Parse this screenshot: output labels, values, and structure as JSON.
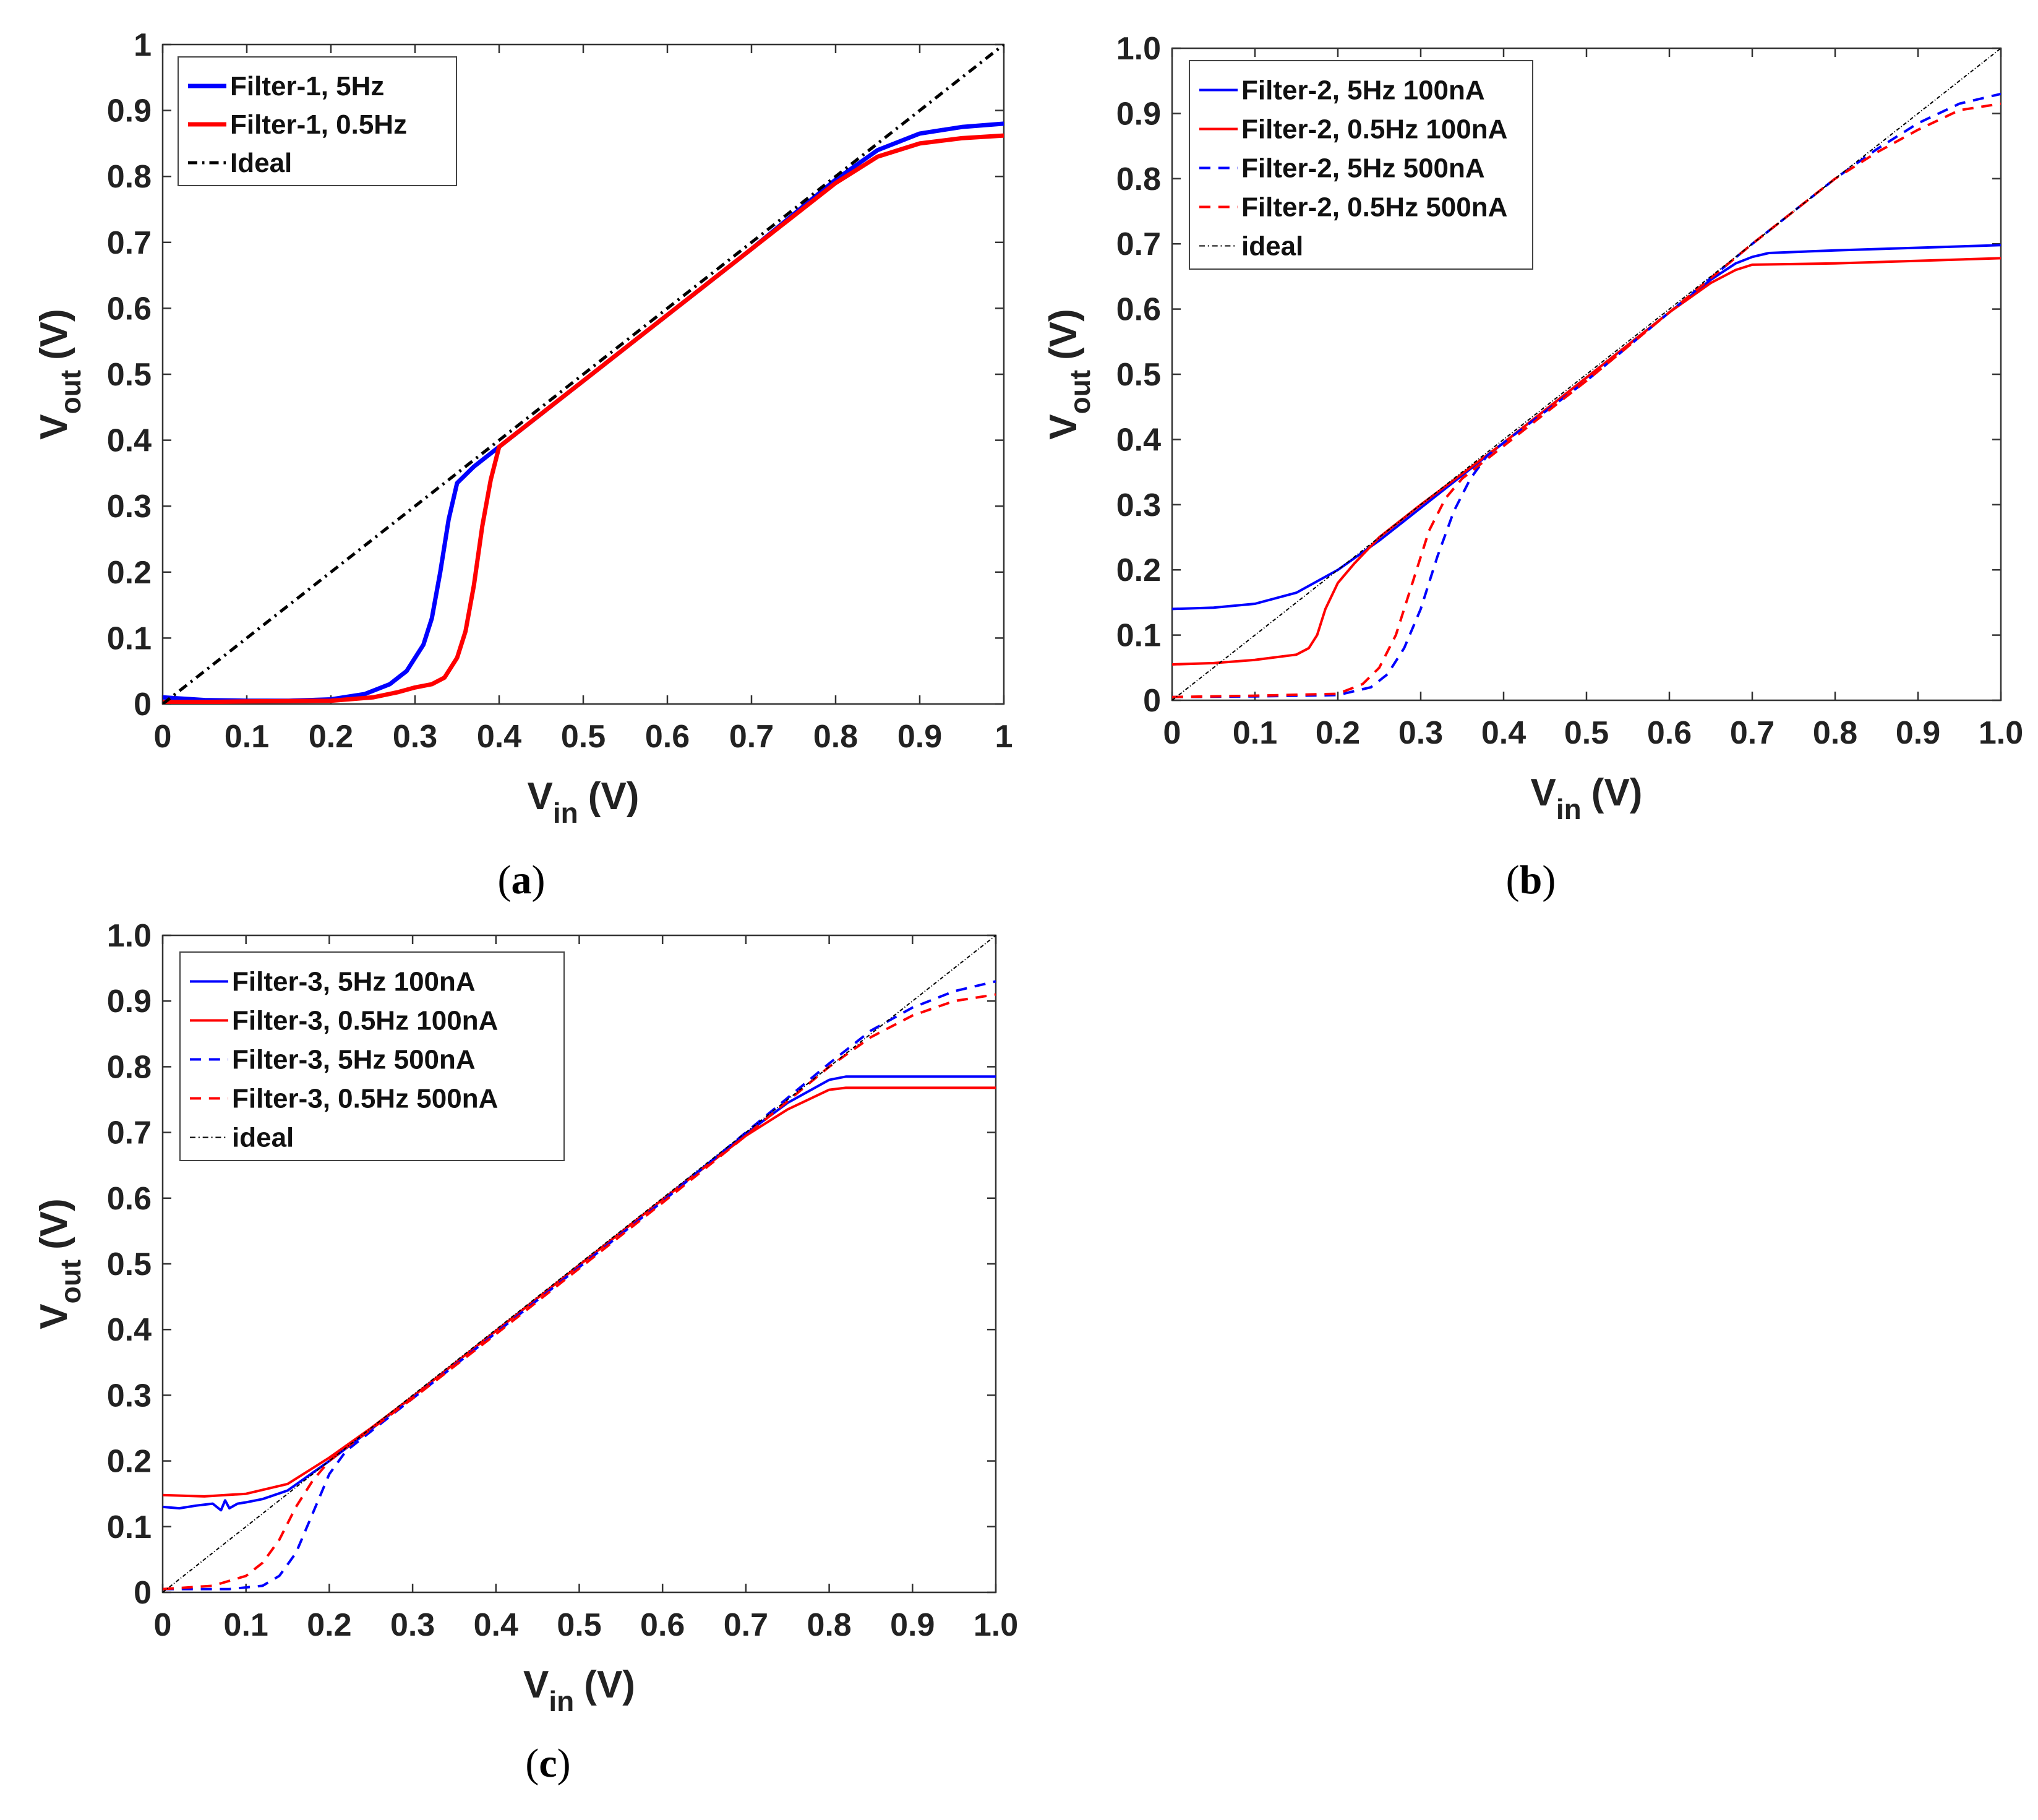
{
  "chart_data": [
    {
      "type": "line",
      "panel": "a",
      "caption_open": "(",
      "caption_letter": "a",
      "caption_close": ")",
      "xlabel_main": "V",
      "xlabel_sub": "in",
      "xlabel_unit": "(V)",
      "ylabel_main": "V",
      "ylabel_sub": "out",
      "ylabel_unit": "(V)",
      "xlim": [
        0,
        1
      ],
      "ylim": [
        0,
        1
      ],
      "xticks": [
        "0",
        "0.1",
        "0.2",
        "0.3",
        "0.4",
        "0.5",
        "0.6",
        "0.7",
        "0.8",
        "0.9",
        "1"
      ],
      "yticks": [
        "0",
        "0.1",
        "0.2",
        "0.3",
        "0.4",
        "0.5",
        "0.6",
        "0.7",
        "0.8",
        "0.9",
        "1"
      ],
      "legend_position": "top-left",
      "series": [
        {
          "name": "Filter-1, 5Hz",
          "color": "#0000ff",
          "dash": "solid",
          "width": 7,
          "x": [
            0,
            0.05,
            0.1,
            0.15,
            0.2,
            0.24,
            0.27,
            0.29,
            0.31,
            0.32,
            0.33,
            0.34,
            0.35,
            0.37,
            0.4,
            0.5,
            0.6,
            0.7,
            0.8,
            0.85,
            0.9,
            0.95,
            1.0
          ],
          "y": [
            0.01,
            0.006,
            0.005,
            0.005,
            0.007,
            0.015,
            0.03,
            0.05,
            0.09,
            0.13,
            0.2,
            0.28,
            0.335,
            0.36,
            0.39,
            0.49,
            0.59,
            0.69,
            0.795,
            0.84,
            0.865,
            0.875,
            0.88
          ]
        },
        {
          "name": "Filter-1, 0.5Hz",
          "color": "#ff0000",
          "dash": "solid",
          "width": 7,
          "x": [
            0,
            0.05,
            0.1,
            0.2,
            0.25,
            0.28,
            0.3,
            0.32,
            0.335,
            0.35,
            0.36,
            0.37,
            0.38,
            0.39,
            0.4,
            0.42,
            0.5,
            0.6,
            0.7,
            0.8,
            0.85,
            0.9,
            0.95,
            1.0
          ],
          "y": [
            0.003,
            0.003,
            0.004,
            0.005,
            0.01,
            0.018,
            0.025,
            0.03,
            0.04,
            0.07,
            0.11,
            0.18,
            0.27,
            0.34,
            0.39,
            0.41,
            0.49,
            0.59,
            0.69,
            0.79,
            0.83,
            0.85,
            0.858,
            0.862
          ]
        },
        {
          "name": "Ideal",
          "color": "#000000",
          "dash": "dashdot",
          "width": 5,
          "x": [
            0,
            1.0
          ],
          "y": [
            0,
            1.0
          ]
        }
      ]
    },
    {
      "type": "line",
      "panel": "b",
      "caption_open": "(",
      "caption_letter": "b",
      "caption_close": ")",
      "xlabel_main": "V",
      "xlabel_sub": "in",
      "xlabel_unit": "(V)",
      "ylabel_main": "V",
      "ylabel_sub": "out",
      "ylabel_unit": "(V)",
      "xlim": [
        0,
        1
      ],
      "ylim": [
        0,
        1
      ],
      "xticks": [
        "0",
        "0.1",
        "0.2",
        "0.3",
        "0.4",
        "0.5",
        "0.6",
        "0.7",
        "0.8",
        "0.9",
        "1.0"
      ],
      "yticks": [
        "0",
        "0.1",
        "0.2",
        "0.3",
        "0.4",
        "0.5",
        "0.6",
        "0.7",
        "0.8",
        "0.9",
        "1.0"
      ],
      "legend_position": "top-left",
      "series": [
        {
          "name": "Filter-2, 5Hz 100nA",
          "color": "#0000ff",
          "dash": "solid",
          "width": 4,
          "x": [
            0,
            0.05,
            0.1,
            0.15,
            0.2,
            0.25,
            0.3,
            0.4,
            0.5,
            0.6,
            0.65,
            0.68,
            0.7,
            0.72,
            0.8,
            0.9,
            1.0
          ],
          "y": [
            0.14,
            0.142,
            0.148,
            0.165,
            0.2,
            0.245,
            0.295,
            0.395,
            0.495,
            0.595,
            0.645,
            0.67,
            0.68,
            0.686,
            0.69,
            0.694,
            0.698
          ]
        },
        {
          "name": "Filter-2, 0.5Hz 100nA",
          "color": "#ff0000",
          "dash": "solid",
          "width": 4,
          "x": [
            0,
            0.05,
            0.1,
            0.15,
            0.165,
            0.175,
            0.185,
            0.2,
            0.22,
            0.25,
            0.3,
            0.4,
            0.5,
            0.6,
            0.65,
            0.68,
            0.7,
            0.8,
            0.9,
            1.0
          ],
          "y": [
            0.055,
            0.057,
            0.062,
            0.07,
            0.08,
            0.1,
            0.14,
            0.18,
            0.21,
            0.25,
            0.3,
            0.395,
            0.495,
            0.595,
            0.64,
            0.66,
            0.668,
            0.67,
            0.674,
            0.678
          ]
        },
        {
          "name": "Filter-2, 5Hz 500nA",
          "color": "#0000ff",
          "dash": "dashed",
          "width": 4,
          "x": [
            0,
            0.1,
            0.2,
            0.24,
            0.26,
            0.28,
            0.3,
            0.32,
            0.34,
            0.36,
            0.38,
            0.4,
            0.5,
            0.6,
            0.7,
            0.8,
            0.85,
            0.9,
            0.95,
            1.0
          ],
          "y": [
            0.005,
            0.006,
            0.008,
            0.02,
            0.04,
            0.08,
            0.14,
            0.22,
            0.29,
            0.34,
            0.375,
            0.395,
            0.49,
            0.595,
            0.7,
            0.8,
            0.845,
            0.885,
            0.915,
            0.93
          ]
        },
        {
          "name": "Filter-2, 0.5Hz 500nA",
          "color": "#ff0000",
          "dash": "dashed",
          "width": 4,
          "x": [
            0,
            0.1,
            0.2,
            0.23,
            0.25,
            0.27,
            0.29,
            0.31,
            0.33,
            0.35,
            0.38,
            0.4,
            0.5,
            0.6,
            0.7,
            0.8,
            0.85,
            0.9,
            0.95,
            1.0
          ],
          "y": [
            0.005,
            0.007,
            0.01,
            0.025,
            0.05,
            0.1,
            0.18,
            0.26,
            0.31,
            0.34,
            0.37,
            0.39,
            0.49,
            0.595,
            0.7,
            0.8,
            0.84,
            0.875,
            0.905,
            0.915
          ]
        },
        {
          "name": "ideal",
          "color": "#000000",
          "dash": "dashdot",
          "width": 2,
          "x": [
            0,
            1.0
          ],
          "y": [
            0,
            1.0
          ]
        }
      ]
    },
    {
      "type": "line",
      "panel": "c",
      "caption_open": "(",
      "caption_letter": "c",
      "caption_close": ")",
      "xlabel_main": "V",
      "xlabel_sub": "in",
      "xlabel_unit": "(V)",
      "ylabel_main": "V",
      "ylabel_sub": "out",
      "ylabel_unit": "(V)",
      "xlim": [
        0,
        1
      ],
      "ylim": [
        0,
        1
      ],
      "xticks": [
        "0",
        "0.1",
        "0.2",
        "0.3",
        "0.4",
        "0.5",
        "0.6",
        "0.7",
        "0.8",
        "0.9",
        "1.0"
      ],
      "yticks": [
        "0",
        "0.1",
        "0.2",
        "0.3",
        "0.4",
        "0.5",
        "0.6",
        "0.7",
        "0.8",
        "0.9",
        "1.0"
      ],
      "legend_position": "top-left",
      "series": [
        {
          "name": "Filter-3, 5Hz 100nA",
          "color": "#0000ff",
          "dash": "solid",
          "width": 4,
          "x": [
            0,
            0.02,
            0.04,
            0.06,
            0.07,
            0.075,
            0.08,
            0.09,
            0.1,
            0.12,
            0.15,
            0.2,
            0.25,
            0.3,
            0.4,
            0.5,
            0.6,
            0.7,
            0.75,
            0.8,
            0.82,
            0.9,
            1.0
          ],
          "y": [
            0.13,
            0.128,
            0.132,
            0.135,
            0.125,
            0.14,
            0.128,
            0.135,
            0.137,
            0.142,
            0.155,
            0.2,
            0.248,
            0.298,
            0.398,
            0.498,
            0.598,
            0.698,
            0.745,
            0.78,
            0.785,
            0.785,
            0.785
          ]
        },
        {
          "name": "Filter-3, 0.5Hz 100nA",
          "color": "#ff0000",
          "dash": "solid",
          "width": 4,
          "x": [
            0,
            0.05,
            0.1,
            0.15,
            0.2,
            0.25,
            0.3,
            0.4,
            0.5,
            0.6,
            0.7,
            0.75,
            0.8,
            0.82,
            0.9,
            1.0
          ],
          "y": [
            0.148,
            0.146,
            0.15,
            0.165,
            0.205,
            0.25,
            0.298,
            0.398,
            0.498,
            0.598,
            0.695,
            0.735,
            0.765,
            0.768,
            0.768,
            0.768
          ]
        },
        {
          "name": "Filter-3, 5Hz 500nA",
          "color": "#0000ff",
          "dash": "dashed",
          "width": 4,
          "x": [
            0,
            0.08,
            0.12,
            0.14,
            0.16,
            0.18,
            0.2,
            0.22,
            0.24,
            0.3,
            0.4,
            0.5,
            0.6,
            0.7,
            0.8,
            0.85,
            0.9,
            0.95,
            1.0
          ],
          "y": [
            0.005,
            0.005,
            0.01,
            0.025,
            0.06,
            0.12,
            0.18,
            0.215,
            0.235,
            0.295,
            0.395,
            0.495,
            0.595,
            0.7,
            0.805,
            0.855,
            0.89,
            0.915,
            0.93
          ]
        },
        {
          "name": "Filter-3, 0.5Hz 500nA",
          "color": "#ff0000",
          "dash": "dashed",
          "width": 4,
          "x": [
            0,
            0.06,
            0.1,
            0.12,
            0.14,
            0.16,
            0.18,
            0.2,
            0.22,
            0.3,
            0.4,
            0.5,
            0.6,
            0.7,
            0.8,
            0.85,
            0.9,
            0.95,
            1.0
          ],
          "y": [
            0.005,
            0.01,
            0.025,
            0.045,
            0.08,
            0.13,
            0.17,
            0.2,
            0.22,
            0.295,
            0.393,
            0.493,
            0.593,
            0.695,
            0.8,
            0.845,
            0.878,
            0.9,
            0.91
          ]
        },
        {
          "name": "ideal",
          "color": "#000000",
          "dash": "dashdot",
          "width": 2,
          "x": [
            0,
            1.0
          ],
          "y": [
            0,
            1.0
          ]
        }
      ]
    }
  ]
}
